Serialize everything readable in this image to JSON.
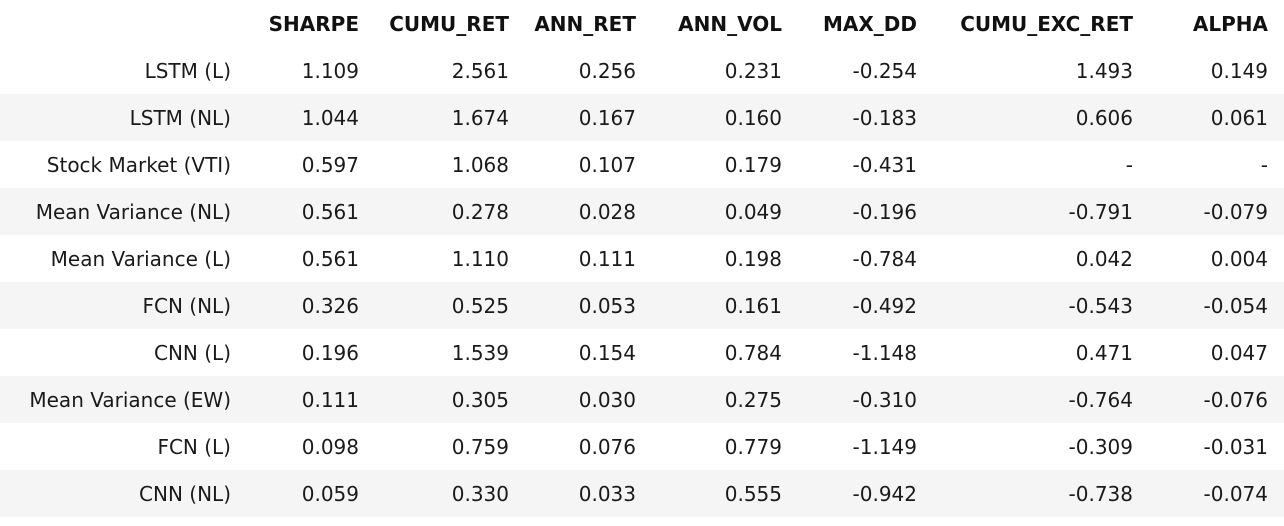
{
  "table": {
    "columns": [
      "",
      "SHARPE",
      "CUMU_RET",
      "ANN_RET",
      "ANN_VOL",
      "MAX_DD",
      "CUMU_EXC_RET",
      "ALPHA"
    ],
    "rows": [
      {
        "label": "LSTM (L)",
        "values": [
          "1.109",
          "2.561",
          "0.256",
          "0.231",
          "-0.254",
          "1.493",
          "0.149"
        ]
      },
      {
        "label": "LSTM (NL)",
        "values": [
          "1.044",
          "1.674",
          "0.167",
          "0.160",
          "-0.183",
          "0.606",
          "0.061"
        ]
      },
      {
        "label": "Stock Market (VTI)",
        "values": [
          "0.597",
          "1.068",
          "0.107",
          "0.179",
          "-0.431",
          "-",
          "-"
        ]
      },
      {
        "label": "Mean Variance (NL)",
        "values": [
          "0.561",
          "0.278",
          "0.028",
          "0.049",
          "-0.196",
          "-0.791",
          "-0.079"
        ]
      },
      {
        "label": "Mean Variance (L)",
        "values": [
          "0.561",
          "1.110",
          "0.111",
          "0.198",
          "-0.784",
          "0.042",
          "0.004"
        ]
      },
      {
        "label": "FCN (NL)",
        "values": [
          "0.326",
          "0.525",
          "0.053",
          "0.161",
          "-0.492",
          "-0.543",
          "-0.054"
        ]
      },
      {
        "label": "CNN (L)",
        "values": [
          "0.196",
          "1.539",
          "0.154",
          "0.784",
          "-1.148",
          "0.471",
          "0.047"
        ]
      },
      {
        "label": "Mean Variance (EW)",
        "values": [
          "0.111",
          "0.305",
          "0.030",
          "0.275",
          "-0.310",
          "-0.764",
          "-0.076"
        ]
      },
      {
        "label": "FCN (L)",
        "values": [
          "0.098",
          "0.759",
          "0.076",
          "0.779",
          "-1.149",
          "-0.309",
          "-0.031"
        ]
      },
      {
        "label": "CNN (NL)",
        "values": [
          "0.059",
          "0.330",
          "0.033",
          "0.555",
          "-0.942",
          "-0.738",
          "-0.074"
        ]
      }
    ]
  }
}
